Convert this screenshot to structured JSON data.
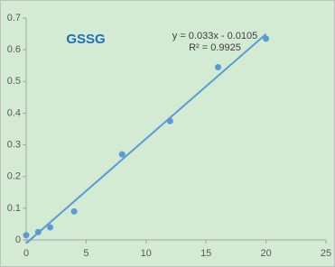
{
  "chart_data": {
    "type": "scatter",
    "title": "GSSG",
    "x": [
      0,
      1,
      2,
      4,
      8,
      12,
      16,
      20
    ],
    "series": [
      {
        "color": "#5b9bd5",
        "values": [
          0.015,
          0.025,
          0.04,
          0.09,
          0.27,
          0.375,
          0.545,
          0.635
        ]
      }
    ],
    "trendline": {
      "label": "y = 0.033x - 0.0105",
      "r2_label": "R² = 0.9925",
      "slope": 0.033,
      "intercept": -0.0105,
      "xrange": [
        0,
        20
      ],
      "color": "#5b9bd5"
    },
    "xlim": [
      0,
      25
    ],
    "xticks": [
      0,
      5,
      10,
      15,
      20,
      25
    ],
    "ylim": [
      0,
      0.7
    ],
    "yticks": [
      0,
      0.1,
      0.2,
      0.3,
      0.4,
      0.5,
      0.6,
      0.7
    ],
    "grid": false
  }
}
